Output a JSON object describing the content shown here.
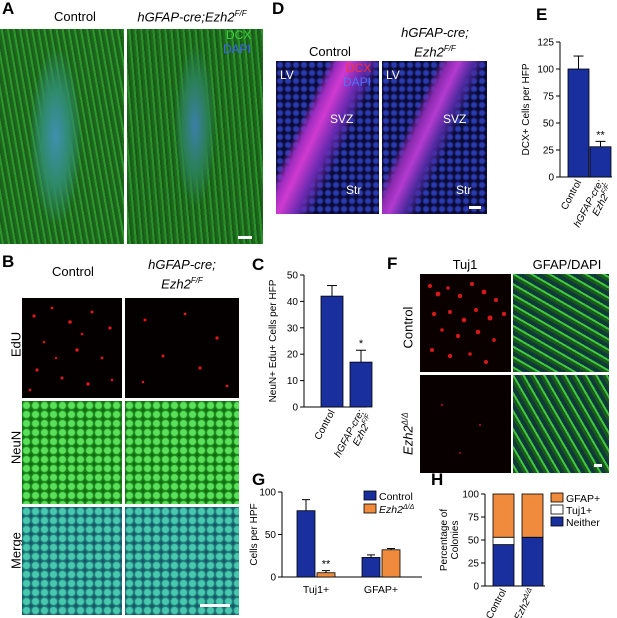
{
  "colors": {
    "bar_control": "#1a2f9e",
    "bar_mutant": "#f08a3c",
    "neither": "#1a2f9e",
    "tuj1": "#ffffff",
    "gfap": "#f08a3c",
    "dcx_green": "#2bb52b",
    "dapi_blue": "#2a3cc8",
    "edu_red": "#e01818"
  },
  "panels": {
    "A": {
      "letter": "A",
      "control_title": "Control",
      "mutant_title": "hGFAP-cre;Ezh2",
      "mutant_sup": "F/F",
      "stain_dcx": "DCX",
      "stain_dapi": "DAPI"
    },
    "B": {
      "letter": "B",
      "control_title": "Control",
      "mutant_title_l1": "hGFAP-cre;",
      "mutant_title_l2": "Ezh2",
      "mutant_sup": "F/F",
      "row_edu": "EdU",
      "row_neun": "NeuN",
      "row_merge": "Merge"
    },
    "D": {
      "letter": "D",
      "control_title": "Control",
      "mutant_title_l1": "hGFAP-cre;",
      "mutant_title_l2": "Ezh2",
      "mutant_sup": "F/F",
      "stain_dcx": "DCX",
      "stain_dapi": "DAPI",
      "lv": "LV",
      "svz": "SVZ",
      "str": "Str"
    },
    "F": {
      "letter": "F",
      "col_tuj1": "Tuj1",
      "col_gfap": "GFAP/DAPI",
      "row_control": "Control",
      "row_mutant": "Ezh2",
      "row_mutant_sup": "Δ/Δ"
    }
  },
  "chart_data": [
    {
      "panel": "C",
      "type": "bar",
      "ylabel": "NeuN+ Edu+ Cells per HFP",
      "categories": [
        "Control",
        "hGFAP-cre; Ezh2F/F"
      ],
      "cat_l1": [
        "Control",
        "hGFAP-cre;"
      ],
      "cat_l2": [
        "",
        "Ezh2"
      ],
      "cat_sup": [
        "",
        "F/F"
      ],
      "values": [
        42,
        17
      ],
      "errors": [
        4,
        4.5
      ],
      "significance": [
        "",
        "*"
      ],
      "ylim": [
        0,
        50
      ],
      "yticks": [
        0,
        10,
        20,
        30,
        40,
        50
      ]
    },
    {
      "panel": "E",
      "type": "bar",
      "ylabel": "DCX+ Cells per HFP",
      "categories": [
        "Control",
        "hGFAP-cre; Ezh2F/F"
      ],
      "cat_l1": [
        "Control",
        "hGFAP-cre;"
      ],
      "cat_l2": [
        "",
        "Ezh2"
      ],
      "cat_sup": [
        "",
        "F/F"
      ],
      "values": [
        100,
        28
      ],
      "errors": [
        12,
        5
      ],
      "significance": [
        "",
        "**"
      ],
      "ylim": [
        0,
        125
      ],
      "yticks": [
        0,
        25,
        50,
        75,
        100,
        125
      ]
    },
    {
      "panel": "G",
      "type": "bar",
      "ylabel": "Cells per HPF",
      "categories": [
        "Tuj1+",
        "GFAP+"
      ],
      "series": [
        {
          "name": "Control",
          "values": [
            78,
            23
          ],
          "errors": [
            13,
            3
          ]
        },
        {
          "name": "Ezh2Δ/Δ",
          "values": [
            5,
            32
          ],
          "errors": [
            2.5,
            1.5
          ]
        }
      ],
      "legend_base": [
        "Control",
        "Ezh2"
      ],
      "legend_sup": [
        "",
        "Δ/Δ"
      ],
      "significance": [
        "**",
        ""
      ],
      "ylim": [
        0,
        100
      ],
      "yticks": [
        0,
        50,
        100
      ]
    },
    {
      "panel": "H",
      "type": "bar",
      "ylabel_l1": "Percentage of",
      "ylabel_l2": "Colonies",
      "categories": [
        "Control",
        "Ezh2Δ/Δ"
      ],
      "cat_base": [
        "Control",
        "Ezh2"
      ],
      "cat_sup": [
        "",
        "Δ/Δ"
      ],
      "stacked": true,
      "series": [
        {
          "name": "Neither",
          "values": [
            45,
            53
          ]
        },
        {
          "name": "Tuj1+",
          "values": [
            8,
            0
          ]
        },
        {
          "name": "GFAP+",
          "values": [
            47,
            47
          ]
        }
      ],
      "legend": [
        "GFAP+",
        "Tuj1+",
        "Neither"
      ],
      "ylim": [
        0,
        100
      ],
      "yticks": [
        0,
        25,
        50,
        75,
        100
      ]
    }
  ]
}
